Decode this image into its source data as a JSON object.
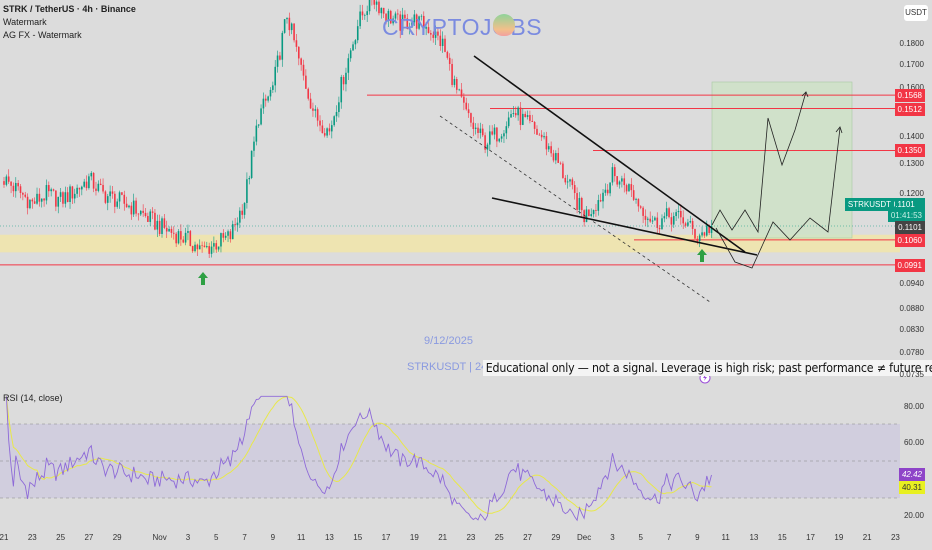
{
  "header": {
    "symbol_line": "STRK / TetherUS · 4h · Binance",
    "indicator_1": "Watermark",
    "indicator_2": "AG FX - Watermark",
    "currency": "USDT"
  },
  "watermark": {
    "brand": "CRYPTOJOBS",
    "date": "9/12/2025",
    "ticker": "STRKUSDT | 240"
  },
  "disclaimer": "Educational only — not a signal. Leverage is high risk; past performance ≠ future results.",
  "price_axis": {
    "scale": "log",
    "ticks": [
      "0.1800",
      "0.1700",
      "0.1600",
      "0.1400",
      "0.1300",
      "0.1200",
      "0.0940",
      "0.0880",
      "0.0830",
      "0.0780",
      "0.0735"
    ]
  },
  "levels": [
    {
      "label": "0.1568",
      "color": "#f23645"
    },
    {
      "label": "0.1512",
      "color": "#f23645"
    },
    {
      "label": "0.1350",
      "color": "#f23645"
    },
    {
      "label": "0.1060",
      "color": "#f23645"
    },
    {
      "label": "0.0991",
      "color": "#f23645"
    }
  ],
  "last_price": {
    "symbol": "STRKUSDT",
    "price": "0.1101",
    "countdown": "01:41:53",
    "close_label": "0.1101",
    "color": "#089981"
  },
  "time_axis": [
    "21",
    "23",
    "25",
    "27",
    "29",
    "Nov",
    "3",
    "5",
    "7",
    "9",
    "11",
    "13",
    "15",
    "17",
    "19",
    "21",
    "23",
    "25",
    "27",
    "29",
    "Dec",
    "3",
    "5",
    "7",
    "9",
    "11",
    "13",
    "15",
    "17",
    "19",
    "21",
    "23"
  ],
  "rsi": {
    "title": "RSI (14, close)",
    "ticks": [
      "80.00",
      "60.00",
      "20.00"
    ],
    "value": "42.42",
    "ma_value": "40.31",
    "line_color": "#8e6ad8",
    "ma_color": "#e8e84a",
    "bands": [
      70,
      50,
      30
    ]
  },
  "colors": {
    "up": "#089981",
    "down": "#f23645",
    "zone": "#f3e6a6",
    "target_box": "#cfe3c8"
  },
  "chart_data": {
    "type": "candlestick",
    "title": "STRK / TetherUS · 4h · Binance",
    "y_scale": "log",
    "ylim": [
      0.0735,
      0.2
    ],
    "zone": [
      0.1025,
      0.1075
    ],
    "closes": [
      [
        "Oct 21",
        0.125
      ],
      [
        "Oct 22",
        0.121
      ],
      [
        "Oct 23",
        0.117
      ],
      [
        "Oct 24",
        0.12
      ],
      [
        "Oct 25",
        0.118
      ],
      [
        "Oct 26",
        0.121
      ],
      [
        "Oct 27",
        0.125
      ],
      [
        "Oct 28",
        0.12
      ],
      [
        "Oct 29",
        0.118
      ],
      [
        "Oct 30",
        0.116
      ],
      [
        "Oct 31",
        0.113
      ],
      [
        "Nov 1",
        0.11
      ],
      [
        "Nov 2",
        0.108
      ],
      [
        "Nov 3",
        0.106
      ],
      [
        "Nov 4",
        0.103
      ],
      [
        "Nov 5",
        0.105
      ],
      [
        "Nov 6",
        0.107
      ],
      [
        "Nov 7",
        0.118
      ],
      [
        "Nov 8",
        0.148
      ],
      [
        "Nov 9",
        0.16
      ],
      [
        "Nov 10",
        0.195
      ],
      [
        "Nov 11",
        0.168
      ],
      [
        "Nov 12",
        0.148
      ],
      [
        "Nov 13",
        0.142
      ],
      [
        "Nov 14",
        0.165
      ],
      [
        "Nov 15",
        0.19
      ],
      [
        "Nov 16",
        0.205
      ],
      [
        "Nov 17",
        0.195
      ],
      [
        "Nov 18",
        0.19
      ],
      [
        "Nov 19",
        0.192
      ],
      [
        "Nov 20",
        0.188
      ],
      [
        "Nov 21",
        0.18
      ],
      [
        "Nov 22",
        0.158
      ],
      [
        "Nov 23",
        0.145
      ],
      [
        "Nov 24",
        0.138
      ],
      [
        "Nov 25",
        0.142
      ],
      [
        "Nov 26",
        0.15
      ],
      [
        "Nov 27",
        0.145
      ],
      [
        "Nov 28",
        0.14
      ],
      [
        "Nov 29",
        0.132
      ],
      [
        "Nov 30",
        0.122
      ],
      [
        "Dec 1",
        0.113
      ],
      [
        "Dec 2",
        0.118
      ],
      [
        "Dec 3",
        0.126
      ],
      [
        "Dec 4",
        0.123
      ],
      [
        "Dec 5",
        0.116
      ],
      [
        "Dec 6",
        0.111
      ],
      [
        "Dec 7",
        0.113
      ],
      [
        "Dec 8",
        0.112
      ],
      [
        "Dec 9",
        0.107
      ],
      [
        "Dec 10",
        0.1101
      ]
    ]
  }
}
